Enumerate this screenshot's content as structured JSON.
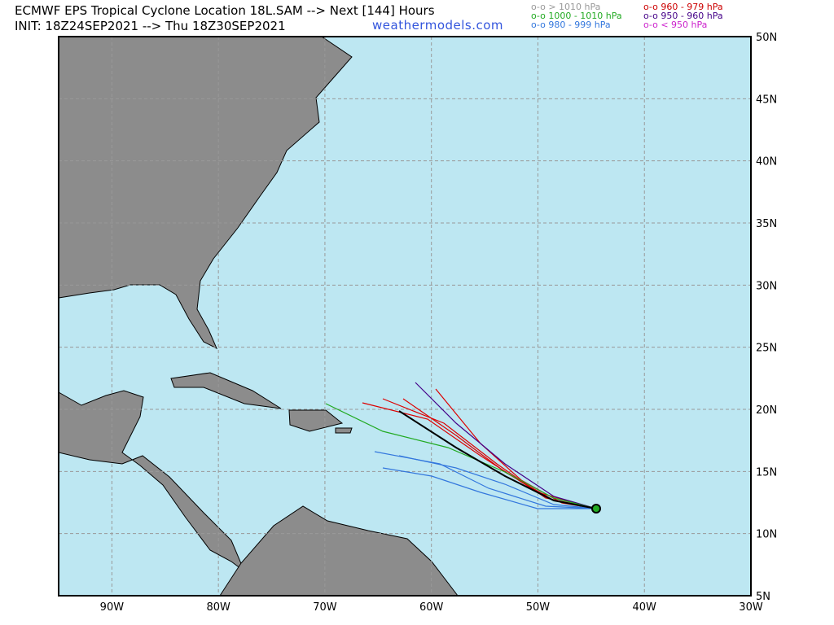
{
  "header": {
    "title": "ECMWF EPS Tropical Cyclone Location 18L.SAM --> Next [144] Hours",
    "init": "INIT: 18Z24SEP2021 --> Thu 18Z30SEP2021",
    "site": "weathermodels.com"
  },
  "legend": [
    {
      "marker": "o-o",
      "label": "> 1010 hPa",
      "color": "#999999"
    },
    {
      "marker": "o-o",
      "label": "960 - 979 hPa",
      "color": "#cc0000"
    },
    {
      "marker": "o-o",
      "label": "1000 - 1010 hPa",
      "color": "#22aa22"
    },
    {
      "marker": "o-o",
      "label": "950 - 960 hPa",
      "color": "#440088"
    },
    {
      "marker": "o-o",
      "label": "980 - 999 hPa",
      "color": "#3377dd"
    },
    {
      "marker": "o-o",
      "label": "< 950 hPa",
      "color": "#cc22cc"
    }
  ],
  "map": {
    "lat_labels": [
      "50N",
      "45N",
      "40N",
      "35N",
      "30N",
      "25N",
      "20N",
      "15N",
      "10N",
      "5N"
    ],
    "lon_labels": [
      "90W",
      "80W",
      "70W",
      "60W",
      "50W",
      "40W",
      "30W"
    ]
  }
}
